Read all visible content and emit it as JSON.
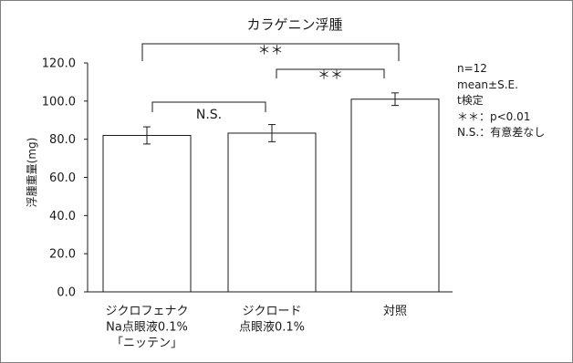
{
  "chart_data": {
    "type": "bar",
    "title": "カラゲニン浮腫",
    "ylabel": "浮腫重量(mg)",
    "xlabel": "",
    "ylim": [
      0,
      120
    ],
    "yticks": [
      "0.0",
      "20.0",
      "40.0",
      "60.0",
      "80.0",
      "100.0",
      "120.0"
    ],
    "categories": [
      [
        "ジクロフェナク",
        "Na点眼液0.1%",
        "「ニッテン」"
      ],
      [
        "ジクロード",
        "点眼液0.1%"
      ],
      [
        "対照"
      ]
    ],
    "values": [
      82.0,
      83.2,
      101.0
    ],
    "errors": [
      4.5,
      4.5,
      3.3
    ],
    "grid": false,
    "significance": [
      {
        "pair": [
          0,
          1
        ],
        "label": "N.S."
      },
      {
        "pair": [
          1,
          2
        ],
        "label": "＊＊"
      },
      {
        "pair": [
          0,
          2
        ],
        "label": "＊＊"
      }
    ],
    "bar_color": "#ffffff",
    "edge_color": "#1a1a1a"
  },
  "notes": {
    "n": "n=12",
    "stat": "mean±S.E.",
    "test": "t検定",
    "sig": "＊＊：p<0.01",
    "ns": "N.S.：有意差なし"
  }
}
